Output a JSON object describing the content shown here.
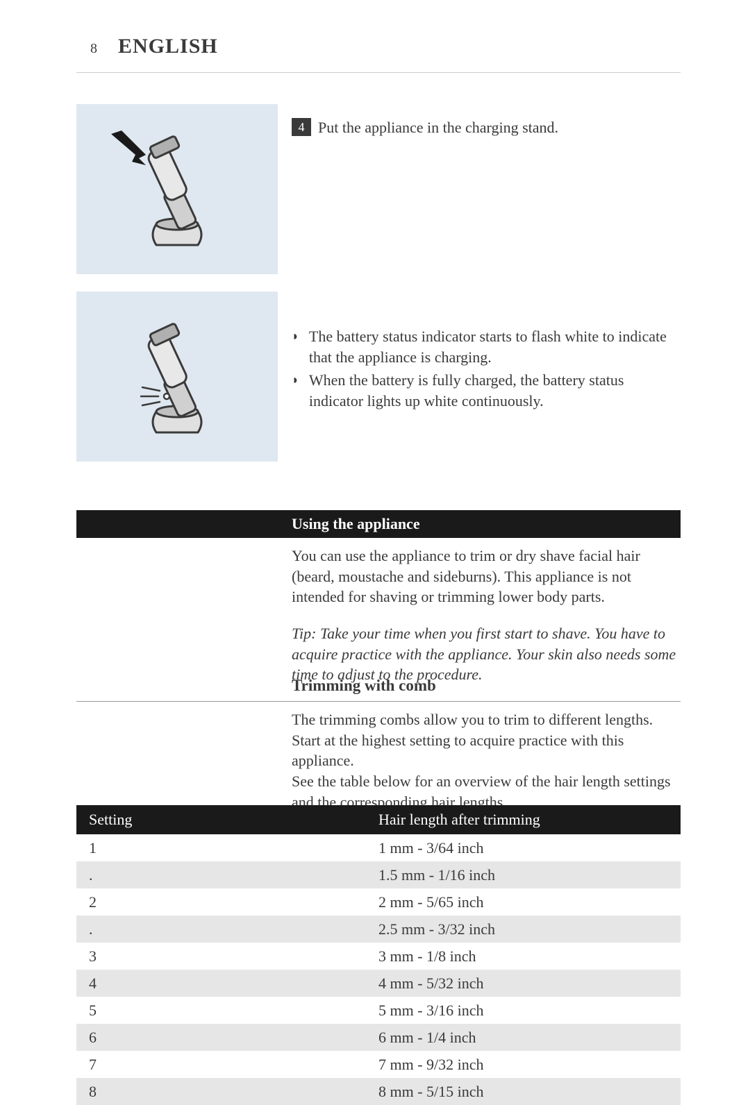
{
  "page": {
    "number": 8,
    "language": "ENGLISH"
  },
  "step4": {
    "number": "4",
    "text": "Put the appliance in the charging stand."
  },
  "bullets": [
    "The battery status indicator starts to flash white to indicate that the appliance is charging.",
    "When the battery is fully charged, the battery status indicator lights up white continuously."
  ],
  "sections": {
    "using_heading": "Using the appliance",
    "using_text": "You can use the appliance to trim or dry shave facial hair (beard, moustache and sideburns). This appliance is not intended for shaving or trimming lower body parts.",
    "tip_text": "Tip: Take your time when you first start to shave. You have to acquire practice with the appliance. Your skin also needs some time to adjust to the procedure.",
    "trimming_heading": "Trimming with comb",
    "trimming_text": "The trimming combs allow you to trim to different lengths.\nStart at the highest setting to acquire practice with this appliance.\nSee the table below for an overview of the hair length settings and the corresponding hair lengths."
  },
  "table": {
    "headers": {
      "setting": "Setting",
      "length": "Hair length after trimming"
    },
    "rows": [
      {
        "setting": "1",
        "length": "1 mm - 3/64 inch"
      },
      {
        "setting": ".",
        "length": "1.5 mm - 1/16 inch"
      },
      {
        "setting": "2",
        "length": "2 mm - 5/65 inch"
      },
      {
        "setting": ".",
        "length": "2.5 mm - 3/32 inch"
      },
      {
        "setting": "3",
        "length": "3 mm - 1/8 inch"
      },
      {
        "setting": "4",
        "length": "4 mm - 5/32 inch"
      },
      {
        "setting": "5",
        "length": "5 mm - 3/16 inch"
      },
      {
        "setting": "6",
        "length": "6 mm - 1/4 inch"
      },
      {
        "setting": "7",
        "length": "7 mm - 9/32 inch"
      },
      {
        "setting": "8",
        "length": "8 mm - 5/15 inch"
      }
    ],
    "colors": {
      "header_bg": "#1a1a1a",
      "row_even": "#ffffff",
      "row_odd": "#e6e6e6"
    }
  },
  "colors": {
    "figure_bg": "#dfe8f0",
    "text": "#3a3a3a",
    "heading_bg": "#1a1a1a"
  }
}
